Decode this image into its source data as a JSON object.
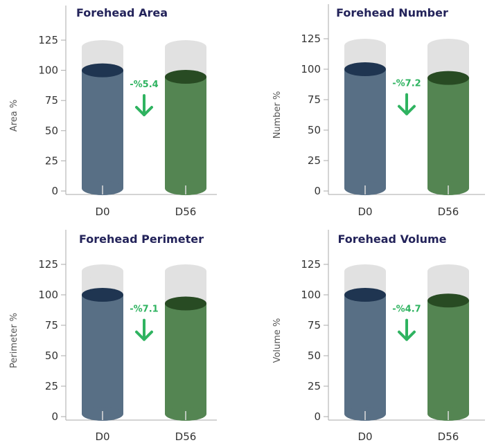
{
  "colors": {
    "d0_body": "#586f85",
    "d0_top": "#1f3551",
    "d56_body": "#548552",
    "d56_top": "#284b23",
    "track": "#e1e1e1",
    "title": "#23235a",
    "arrow": "#2fb360",
    "axis": "#aaaaaa"
  },
  "chart_data": [
    {
      "type": "bar",
      "title": "Forehead Area",
      "ylabel": "Area %",
      "categories": [
        "D0",
        "D56"
      ],
      "values": [
        100,
        94.6
      ],
      "ylim": [
        0,
        125
      ],
      "yticks": [
        0,
        25,
        50,
        75,
        100,
        125
      ],
      "change_label": "-%5.4"
    },
    {
      "type": "bar",
      "title": "Forehead Number",
      "ylabel": "Number %",
      "categories": [
        "D0",
        "D56"
      ],
      "values": [
        100,
        92.8
      ],
      "ylim": [
        0,
        125
      ],
      "yticks": [
        0,
        25,
        50,
        75,
        100,
        125
      ],
      "change_label": "-%7.2"
    },
    {
      "type": "bar",
      "title": "Forehead Perimeter",
      "ylabel": "Perimeter %",
      "categories": [
        "D0",
        "D56"
      ],
      "values": [
        100,
        92.9
      ],
      "ylim": [
        0,
        125
      ],
      "yticks": [
        0,
        25,
        50,
        75,
        100,
        125
      ],
      "change_label": "-%7.1"
    },
    {
      "type": "bar",
      "title": "Forehead Volume",
      "ylabel": "Volume %",
      "categories": [
        "D0",
        "D56"
      ],
      "values": [
        100,
        95.3
      ],
      "ylim": [
        0,
        125
      ],
      "yticks": [
        0,
        25,
        50,
        75,
        100,
        125
      ],
      "change_label": "-%4.7"
    }
  ]
}
